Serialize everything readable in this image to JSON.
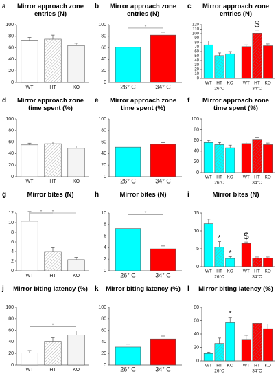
{
  "chart_data": [
    {
      "type": "bar",
      "panel": "a",
      "title": "Mirror approach zone entries (N)",
      "categories": [
        "WT",
        "HT",
        "KO"
      ],
      "values": [
        73,
        75,
        64
      ],
      "errors": [
        5,
        7,
        4
      ],
      "colors": [
        "#ffffff",
        "#ffffff",
        "#f4f4f4"
      ],
      "hatch": [
        false,
        true,
        false
      ],
      "ylim": [
        0,
        100
      ],
      "yticks": [
        0,
        20,
        40,
        60,
        80,
        100
      ],
      "annotations": []
    },
    {
      "type": "bar",
      "panel": "b",
      "title": "Mirror approach zone entries (N)",
      "categories": [
        "26° C",
        "34° C"
      ],
      "values": [
        61,
        82
      ],
      "errors": [
        4,
        5
      ],
      "colors": [
        "#00ffff",
        "#ff0000"
      ],
      "hatch": [
        false,
        false
      ],
      "ylim": [
        0,
        100
      ],
      "yticks": [
        0,
        20,
        40,
        60,
        80,
        100
      ],
      "annotations": [
        {
          "text": "*",
          "between": [
            0,
            1
          ]
        }
      ]
    },
    {
      "type": "grouped_bar",
      "panel": "c",
      "title": "Mirror approach zone entries (N)",
      "categories": [
        "WT",
        "HT",
        "KO",
        "WT",
        "HT",
        "KO"
      ],
      "groups": [
        "26°C",
        "34°C"
      ],
      "values": [
        75,
        51,
        55,
        71,
        101,
        73
      ],
      "errors": [
        9,
        6,
        5,
        4,
        7,
        4
      ],
      "colors": [
        "#00ffff",
        "#00ffff",
        "#00ffff",
        "#ff0000",
        "#ff0000",
        "#ff0000"
      ],
      "hatch": [
        false,
        true,
        false,
        false,
        true,
        false
      ],
      "ylim": [
        0,
        120
      ],
      "yticks": [
        0,
        10,
        20,
        30,
        40,
        50,
        60,
        70,
        80,
        90,
        100,
        110,
        120
      ],
      "annotations": [
        {
          "text": "$",
          "bar": 4
        }
      ]
    },
    {
      "type": "bar",
      "panel": "d",
      "title": "Mirror approach zone time spent (%)",
      "categories": [
        "WT",
        "HT",
        "KO"
      ],
      "values": [
        55,
        57,
        49
      ],
      "errors": [
        3,
        3,
        4
      ],
      "colors": [
        "#ffffff",
        "#ffffff",
        "#f4f4f4"
      ],
      "hatch": [
        false,
        true,
        false
      ],
      "ylim": [
        0,
        100
      ],
      "yticks": [
        0,
        20,
        40,
        60,
        80,
        100
      ],
      "annotations": []
    },
    {
      "type": "bar",
      "panel": "e",
      "title": "Mirror approach zone time spent (%)",
      "categories": [
        "26° C",
        "34° C"
      ],
      "values": [
        51,
        56
      ],
      "errors": [
        2,
        3
      ],
      "colors": [
        "#00ffff",
        "#ff0000"
      ],
      "hatch": [
        false,
        false
      ],
      "ylim": [
        0,
        100
      ],
      "yticks": [
        0,
        20,
        40,
        60,
        80,
        100
      ],
      "annotations": []
    },
    {
      "type": "grouped_bar",
      "panel": "f",
      "title": "Mirror approach zone time spent (%)",
      "categories": [
        "WT",
        "HT",
        "KO",
        "WT",
        "HT",
        "KO"
      ],
      "groups": [
        "26°C",
        "34°C"
      ],
      "values": [
        56,
        52,
        46,
        54,
        62,
        52
      ],
      "errors": [
        4,
        4,
        5,
        3,
        3,
        3
      ],
      "colors": [
        "#00ffff",
        "#00ffff",
        "#00ffff",
        "#ff0000",
        "#ff0000",
        "#ff0000"
      ],
      "hatch": [
        false,
        true,
        false,
        false,
        true,
        false
      ],
      "ylim": [
        0,
        100
      ],
      "yticks": [
        0,
        20,
        40,
        60,
        80,
        100
      ],
      "annotations": []
    },
    {
      "type": "bar",
      "panel": "g",
      "title": "Mirror bites (N)",
      "categories": [
        "WT",
        "HT",
        "KO"
      ],
      "values": [
        10.3,
        4,
        2.3
      ],
      "errors": [
        2,
        0.8,
        0.5
      ],
      "colors": [
        "#ffffff",
        "#ffffff",
        "#f4f4f4"
      ],
      "hatch": [
        false,
        true,
        false
      ],
      "ylim": [
        0,
        12
      ],
      "yticks": [
        0,
        2,
        4,
        6,
        8,
        10,
        12
      ],
      "annotations": [
        {
          "text": "*",
          "between": [
            0,
            1
          ]
        },
        {
          "text": "*",
          "between": [
            0,
            2
          ]
        }
      ]
    },
    {
      "type": "bar",
      "panel": "h",
      "title": "Mirror bites (N)",
      "categories": [
        "26° C",
        "34° C"
      ],
      "values": [
        7.3,
        3.8
      ],
      "errors": [
        1.7,
        0.5
      ],
      "colors": [
        "#00ffff",
        "#ff0000"
      ],
      "hatch": [
        false,
        false
      ],
      "ylim": [
        0,
        10
      ],
      "yticks": [
        0,
        2,
        4,
        6,
        8,
        10
      ],
      "annotations": [
        {
          "text": "*",
          "between": [
            0,
            1
          ]
        }
      ]
    },
    {
      "type": "grouped_bar",
      "panel": "i",
      "title": "Mirror bites (N)",
      "categories": [
        "WT",
        "HT",
        "KO",
        "WT",
        "HT",
        "KO"
      ],
      "groups": [
        "26°C",
        "34°C"
      ],
      "values": [
        12,
        5.5,
        2.3,
        6.5,
        2.4,
        2.4
      ],
      "errors": [
        1.3,
        1.5,
        0.5,
        0.4,
        0.3,
        0.3
      ],
      "colors": [
        "#00ffff",
        "#00ffff",
        "#00ffff",
        "#ff0000",
        "#ff0000",
        "#ff0000"
      ],
      "hatch": [
        false,
        true,
        false,
        false,
        true,
        false
      ],
      "ylim": [
        0,
        15
      ],
      "yticks": [
        0,
        5,
        10,
        15
      ],
      "annotations": [
        {
          "text": "*",
          "bar": 1
        },
        {
          "text": "*",
          "bar": 2
        },
        {
          "text": "$",
          "bar": 3
        }
      ]
    },
    {
      "type": "bar",
      "panel": "j",
      "title": "Mirror biting latency (%)",
      "categories": [
        "WT",
        "HT",
        "KO"
      ],
      "values": [
        21,
        41,
        52
      ],
      "errors": [
        4,
        6,
        7
      ],
      "colors": [
        "#ffffff",
        "#ffffff",
        "#f4f4f4"
      ],
      "hatch": [
        false,
        true,
        false
      ],
      "ylim": [
        0,
        100
      ],
      "yticks": [
        0,
        20,
        40,
        60,
        80,
        100
      ],
      "annotations": [
        {
          "text": "*",
          "between": [
            0,
            2
          ]
        }
      ]
    },
    {
      "type": "bar",
      "panel": "k",
      "title": "Mirror biting latency (%)",
      "categories": [
        "26° C",
        "34° C"
      ],
      "values": [
        31,
        45
      ],
      "errors": [
        5,
        5
      ],
      "colors": [
        "#00ffff",
        "#ff0000"
      ],
      "hatch": [
        false,
        false
      ],
      "ylim": [
        0,
        100
      ],
      "yticks": [
        0,
        20,
        40,
        60,
        80,
        100
      ],
      "annotations": []
    },
    {
      "type": "grouped_bar",
      "panel": "l",
      "title": "Mirror biting latency (%)",
      "categories": [
        "WT",
        "HT",
        "KO",
        "WT",
        "HT",
        "KO"
      ],
      "groups": [
        "26°C",
        "34°C"
      ],
      "values": [
        11,
        26,
        57,
        32,
        56,
        48
      ],
      "errors": [
        2,
        8,
        8,
        6,
        8,
        7
      ],
      "colors": [
        "#00ffff",
        "#00ffff",
        "#00ffff",
        "#ff0000",
        "#ff0000",
        "#ff0000"
      ],
      "hatch": [
        false,
        true,
        false,
        false,
        true,
        false
      ],
      "ylim": [
        0,
        80
      ],
      "yticks": [
        0,
        20,
        40,
        60,
        80
      ],
      "annotations": [
        {
          "text": "*",
          "bar": 2
        }
      ]
    }
  ]
}
